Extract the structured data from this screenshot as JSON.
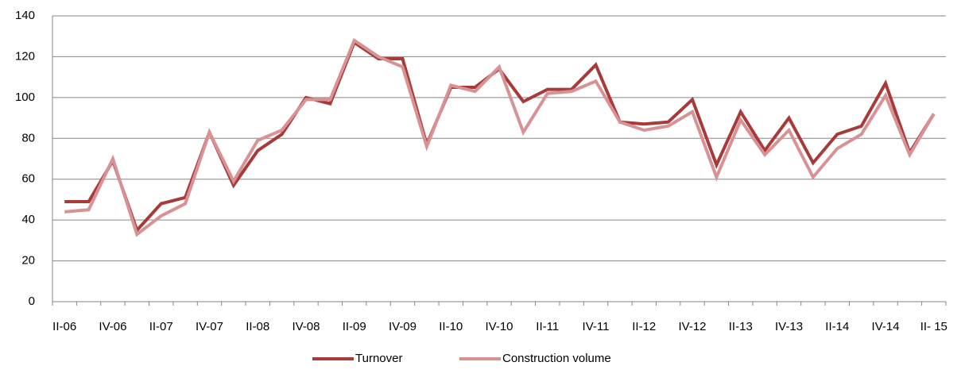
{
  "chart_data": {
    "type": "line",
    "categories": [
      "II-06",
      null,
      "IV-06",
      null,
      "II-07",
      null,
      "IV-07",
      null,
      "II-08",
      null,
      "IV-08",
      null,
      "II-09",
      null,
      "IV-09",
      null,
      "II-10",
      null,
      "IV-10",
      null,
      "II-11",
      null,
      "IV-11",
      null,
      "II-12",
      null,
      "IV-12",
      null,
      "II-13",
      null,
      "IV-13",
      null,
      "II-14",
      null,
      "IV-14",
      null,
      "II- 15"
    ],
    "series": [
      {
        "name": "Turnover",
        "color": "#a83a3a",
        "values": [
          49,
          49,
          69,
          35,
          48,
          51,
          83,
          57,
          74,
          82,
          100,
          97,
          127,
          119,
          119,
          77,
          105,
          105,
          114,
          98,
          104,
          104,
          116,
          88,
          87,
          88,
          99,
          67,
          93,
          74,
          90,
          68,
          82,
          86,
          107,
          73,
          92
        ]
      },
      {
        "name": "Construction volume",
        "color": "#d99294",
        "values": [
          44,
          45,
          70,
          33,
          42,
          48,
          83,
          59,
          79,
          84,
          99,
          99,
          128,
          120,
          115,
          76,
          106,
          103,
          115,
          83,
          102,
          103,
          108,
          88,
          84,
          86,
          93,
          61,
          89,
          72,
          84,
          61,
          75,
          82,
          101,
          72,
          92
        ]
      }
    ],
    "ylim": [
      0,
      140
    ],
    "yticks": [
      0,
      20,
      40,
      60,
      80,
      100,
      120,
      140
    ],
    "grid": true,
    "legend": "bottom"
  }
}
